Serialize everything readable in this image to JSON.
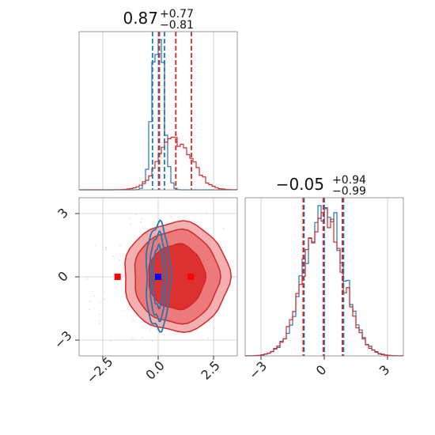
{
  "colors": {
    "red": "#d62728",
    "blue": "#1f77b4",
    "red_fill_light": "#f4b0b0",
    "red_fill_mid": "#ec7a7a",
    "red_fill_dark": "#dd3030",
    "grid": "#cccccc",
    "axis": "#808080",
    "marker_red": "#ff0000",
    "marker_blue": "#0000ff"
  },
  "chart_data": [
    {
      "type": "histogram",
      "panel": "top-left",
      "title": {
        "main": "0.87",
        "sup": "+0.77",
        "sub": "−0.81"
      },
      "xlim": [
        -3.9,
        3.9
      ],
      "grid": true,
      "series": [
        {
          "color": "blue",
          "center": 0.0,
          "sigma": 0.28,
          "quantiles": [
            -0.28,
            0.02,
            0.31
          ]
        },
        {
          "color": "red",
          "center": 0.87,
          "sigma": 0.8,
          "quantiles": [
            0.06,
            0.87,
            1.64
          ]
        }
      ]
    },
    {
      "type": "histogram",
      "panel": "bottom-right",
      "title": {
        "main": "−0.05",
        "sup": "+0.94",
        "sub": "−0.99"
      },
      "xlim": [
        -3.9,
        3.9
      ],
      "xticks": [
        "−3",
        "0",
        "3"
      ],
      "grid": true,
      "series": [
        {
          "color": "blue",
          "center": 0.0,
          "sigma": 0.95,
          "quantiles": [
            -1.0,
            0.0,
            0.95
          ]
        },
        {
          "color": "red",
          "center": -0.05,
          "sigma": 0.97,
          "quantiles": [
            -1.04,
            -0.05,
            0.89
          ]
        }
      ]
    },
    {
      "type": "contour",
      "panel": "bottom-left",
      "xlim": [
        -3.9,
        3.9
      ],
      "ylim": [
        -3.9,
        3.9
      ],
      "xticks": [
        "−2.5",
        "0.0",
        "2.5"
      ],
      "yticks": [
        "3",
        "0",
        "−3"
      ],
      "grid": true,
      "series": [
        {
          "color": "red",
          "filled": true,
          "cx": 0.9,
          "cy": 0.0,
          "levels": [
            [
              2.6,
              2.7
            ],
            [
              2.1,
              2.3
            ],
            [
              1.4,
              1.6
            ]
          ]
        },
        {
          "color": "blue",
          "filled": false,
          "cx": 0.0,
          "cy": 0.0,
          "levels": [
            [
              0.6,
              2.6
            ],
            [
              0.4,
              2.1
            ],
            [
              0.25,
              1.5
            ]
          ]
        }
      ],
      "markers": [
        {
          "color": "marker_red",
          "x": -2.0,
          "y": 0.0
        },
        {
          "color": "marker_red",
          "x": 1.6,
          "y": 0.0
        },
        {
          "color": "marker_blue",
          "x": 0.0,
          "y": 0.0
        }
      ]
    }
  ]
}
